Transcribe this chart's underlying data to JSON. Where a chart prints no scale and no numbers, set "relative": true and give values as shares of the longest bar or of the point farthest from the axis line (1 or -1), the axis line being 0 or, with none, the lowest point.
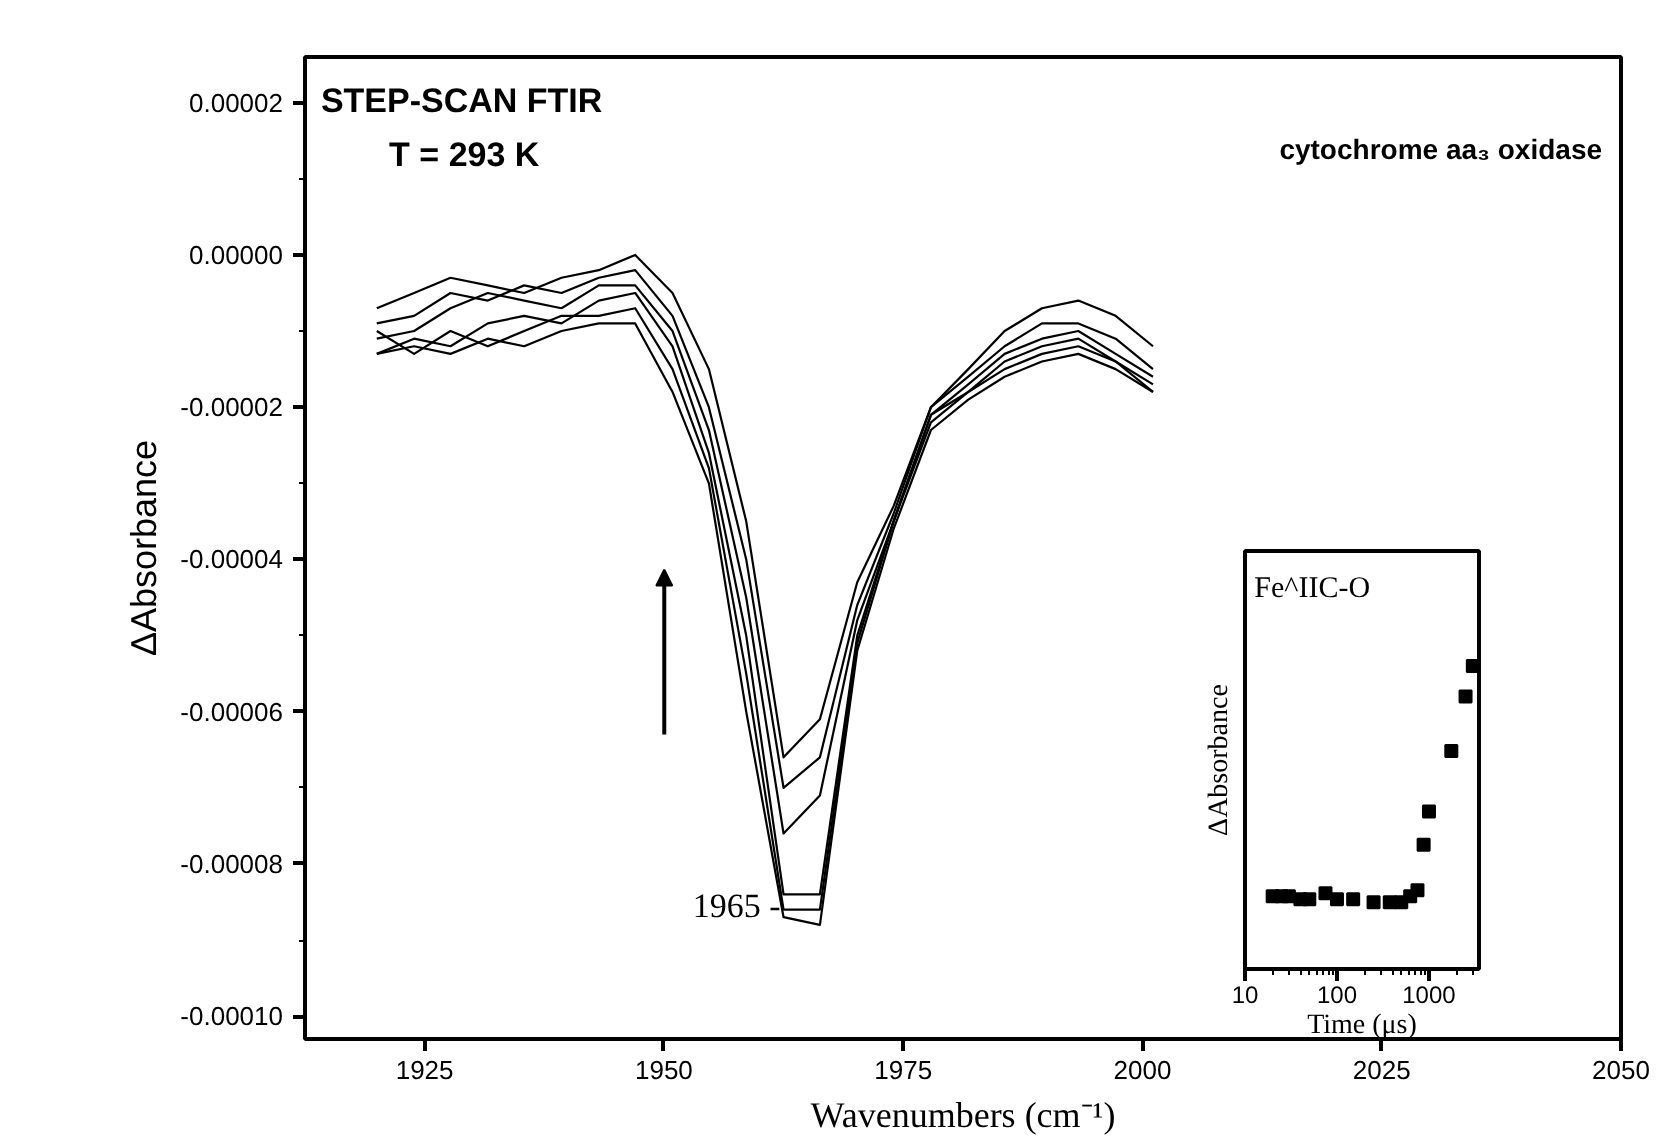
{
  "chart_data": [
    {
      "type": "line",
      "xlabel": "Wavenumbers (cm⁻¹)",
      "ylabel": "ΔAbsorbance",
      "x": [
        1920.0,
        1923.9,
        1927.7,
        1931.6,
        1935.4,
        1939.3,
        1943.2,
        1947.0,
        1950.9,
        1954.7,
        1958.6,
        1962.5,
        1966.3,
        1970.2,
        1974.0,
        1977.9,
        1981.8,
        1985.6,
        1989.5,
        1993.3,
        1997.2,
        2001.1
      ],
      "series": [
        {
          "color": "#000000",
          "values": [
            -7e-06,
            -5e-06,
            -3e-06,
            -4e-06,
            -5e-06,
            -3e-06,
            -2e-06,
            0.0,
            -5e-06,
            -1.5e-05,
            -3.5e-05,
            -6.6e-05,
            -6.1e-05,
            -4.3e-05,
            -3.3e-05,
            -2e-05,
            -1.5e-05,
            -1e-05,
            -7e-06,
            -6e-06,
            -8e-06,
            -1.2e-05
          ]
        },
        {
          "color": "#000000",
          "values": [
            -9e-06,
            -8e-06,
            -5e-06,
            -6e-06,
            -4e-06,
            -5e-06,
            -3e-06,
            -2e-06,
            -8e-06,
            -2e-05,
            -4e-05,
            -7e-05,
            -6.6e-05,
            -4.6e-05,
            -3.4e-05,
            -2e-05,
            -1.6e-05,
            -1.2e-05,
            -9e-06,
            -9e-06,
            -1.1e-05,
            -1.5e-05
          ]
        },
        {
          "color": "#000000",
          "values": [
            -1.1e-05,
            -1e-05,
            -7e-06,
            -5e-06,
            -6e-06,
            -7e-06,
            -4e-06,
            -4e-06,
            -1e-05,
            -2.3e-05,
            -4.5e-05,
            -7.6e-05,
            -7.1e-05,
            -4.8e-05,
            -3.5e-05,
            -2.1e-05,
            -1.7e-05,
            -1.3e-05,
            -1.1e-05,
            -1e-05,
            -1.3e-05,
            -1.6e-05
          ]
        },
        {
          "color": "#000000",
          "values": [
            -1.3e-05,
            -1.1e-05,
            -1.2e-05,
            -9e-06,
            -8e-06,
            -9e-06,
            -6e-06,
            -5e-06,
            -1.2e-05,
            -2.6e-05,
            -5e-05,
            -8.4e-05,
            -8.4e-05,
            -5e-05,
            -3.5e-05,
            -2.1e-05,
            -1.8e-05,
            -1.4e-05,
            -1.2e-05,
            -1.1e-05,
            -1.4e-05,
            -1.7e-05
          ]
        },
        {
          "color": "#000000",
          "values": [
            -1e-05,
            -1.3e-05,
            -1e-05,
            -1.2e-05,
            -1e-05,
            -8e-06,
            -8e-06,
            -7e-06,
            -1.5e-05,
            -2.8e-05,
            -5.5e-05,
            -8.6e-05,
            -8.6e-05,
            -5.1e-05,
            -3.5e-05,
            -2.2e-05,
            -1.8e-05,
            -1.5e-05,
            -1.3e-05,
            -1.2e-05,
            -1.4e-05,
            -1.8e-05
          ]
        },
        {
          "color": "#000000",
          "values": [
            -1.3e-05,
            -1.2e-05,
            -1.3e-05,
            -1.1e-05,
            -1.2e-05,
            -1e-05,
            -9e-06,
            -9e-06,
            -1.8e-05,
            -3e-05,
            -6e-05,
            -8.7e-05,
            -8.8e-05,
            -5.2e-05,
            -3.6e-05,
            -2.3e-05,
            -1.9e-05,
            -1.6e-05,
            -1.4e-05,
            -1.3e-05,
            -1.5e-05,
            -1.8e-05
          ]
        }
      ],
      "xlim": [
        1912.5,
        2050
      ],
      "ylim": [
        -0.000103,
        2.6e-05
      ],
      "xticks": [
        1925,
        1950,
        1975,
        2000,
        2025,
        2050
      ],
      "yticks": [
        {
          "value": -0.0001,
          "label": "-0.00010"
        },
        {
          "value": -8e-05,
          "label": "-0.00008"
        },
        {
          "value": -6e-05,
          "label": "-0.00006"
        },
        {
          "value": -4e-05,
          "label": "-0.00004"
        },
        {
          "value": -2e-05,
          "label": "-0.00002"
        },
        {
          "value": 0,
          "label": "0.00000"
        },
        {
          "value": 2e-05,
          "label": "0.00002"
        }
      ],
      "annotations": [
        "STEP-SCAN FTIR",
        "T = 293 K",
        "cytochrome aa₃ oxidase",
        {
          "text": "1965 -",
          "x": 1962.2,
          "y": -8.55e-05
        }
      ]
    },
    {
      "type": "scatter",
      "xlabel": "Time (μs)",
      "ylabel": "ΔAbsorbance",
      "relative": true,
      "log": "x",
      "marker": "square",
      "tick_labels": "x",
      "x": [
        20,
        25,
        30,
        40,
        50,
        75,
        100,
        150,
        250,
        375,
        500,
        625,
        750,
        875,
        1000,
        1750,
        2500,
        3000
      ],
      "series": [
        {
          "color": "#000000",
          "values": [
            0.24,
            0.24,
            0.24,
            0.23,
            0.23,
            0.25,
            0.23,
            0.23,
            0.22,
            0.22,
            0.22,
            0.24,
            0.26,
            0.41,
            0.52,
            0.72,
            0.9,
            1.0
          ]
        }
      ],
      "xlim": [
        10,
        3500
      ],
      "xticks": [
        10,
        100,
        1000
      ],
      "annotations": [
        "Fe^IIC-O"
      ]
    }
  ]
}
